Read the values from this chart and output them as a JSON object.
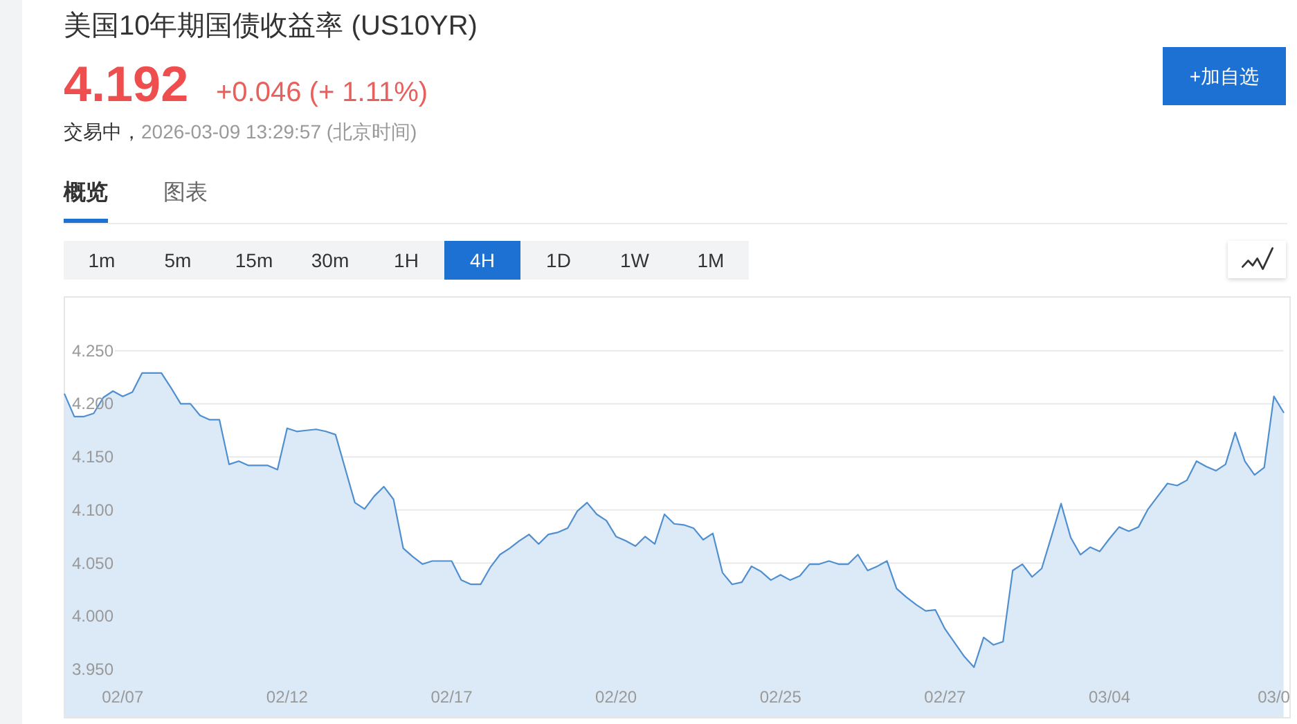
{
  "chart_data": {
    "type": "area",
    "title": "美国10年期国债收益率 (US10YR)",
    "subtitle": "4.192",
    "annotations": [
      "+0.046 (+ 1.11%)",
      "交易中，",
      "2026-03-09 13:29:57 (北京时间)",
      "+加自选",
      "概览",
      "图表",
      "1m",
      "5m",
      "15m",
      "30m",
      "1H",
      "4H",
      "1D",
      "1W",
      "1M"
    ],
    "categories": [
      null,
      null,
      null,
      null,
      null,
      null,
      "02/07",
      null,
      null,
      null,
      null,
      null,
      null,
      null,
      null,
      null,
      null,
      null,
      null,
      null,
      null,
      null,
      null,
      "02/12",
      null,
      null,
      null,
      null,
      null,
      null,
      null,
      null,
      null,
      null,
      null,
      null,
      null,
      null,
      null,
      null,
      "02/17",
      null,
      null,
      null,
      null,
      null,
      null,
      null,
      null,
      null,
      null,
      null,
      null,
      null,
      null,
      null,
      null,
      "02/20",
      null,
      null,
      null,
      null,
      null,
      null,
      null,
      null,
      null,
      null,
      null,
      null,
      null,
      null,
      null,
      null,
      "02/25",
      null,
      null,
      null,
      null,
      null,
      null,
      null,
      null,
      null,
      null,
      null,
      null,
      null,
      null,
      null,
      null,
      "02/27",
      null,
      null,
      null,
      null,
      null,
      null,
      null,
      null,
      null,
      null,
      null,
      null,
      null,
      null,
      null,
      null,
      "03/04",
      null,
      null,
      null,
      null,
      null,
      null,
      null,
      null,
      null,
      null,
      null,
      null,
      null,
      null,
      null,
      null,
      "03/0",
      null
    ],
    "series": [
      {
        "color": "#4f8fd0",
        "values": [
          4.209,
          4.188,
          4.188,
          4.191,
          4.206,
          4.212,
          4.207,
          4.211,
          4.229,
          4.229,
          4.229,
          4.215,
          4.2,
          4.2,
          4.189,
          4.185,
          4.185,
          4.143,
          4.146,
          4.142,
          4.142,
          4.142,
          4.138,
          4.177,
          4.174,
          4.175,
          4.176,
          4.174,
          4.171,
          4.139,
          4.107,
          4.101,
          4.113,
          4.122,
          4.11,
          4.064,
          4.056,
          4.049,
          4.052,
          4.052,
          4.052,
          4.034,
          4.03,
          4.03,
          4.046,
          4.058,
          4.064,
          4.071,
          4.077,
          4.068,
          4.077,
          4.079,
          4.083,
          4.099,
          4.107,
          4.096,
          4.09,
          4.075,
          4.071,
          4.066,
          4.075,
          4.068,
          4.096,
          4.087,
          4.086,
          4.083,
          4.072,
          4.078,
          4.041,
          4.03,
          4.032,
          4.047,
          4.042,
          4.034,
          4.039,
          4.034,
          4.038,
          4.049,
          4.049,
          4.052,
          4.049,
          4.049,
          4.058,
          4.043,
          4.047,
          4.052,
          4.026,
          4.018,
          4.011,
          4.005,
          4.006,
          3.988,
          3.975,
          3.962,
          3.952,
          3.98,
          3.973,
          3.976,
          4.043,
          4.049,
          4.037,
          4.045,
          4.075,
          4.106,
          4.074,
          4.058,
          4.065,
          4.061,
          4.073,
          4.084,
          4.08,
          4.084,
          4.101,
          4.113,
          4.125,
          4.123,
          4.128,
          4.146,
          4.141,
          4.137,
          4.143,
          4.173,
          4.146,
          4.133,
          4.14,
          4.207,
          4.192
        ]
      }
    ],
    "ylim": [
      3.905,
      4.3
    ],
    "yticks": [
      {
        "value": 3.95,
        "label": "3.950"
      },
      {
        "value": 4.0,
        "label": "4.000"
      },
      {
        "value": 4.05,
        "label": "4.050"
      },
      {
        "value": 4.1,
        "label": "4.100"
      },
      {
        "value": 4.15,
        "label": "4.150"
      },
      {
        "value": 4.2,
        "label": "4.200"
      },
      {
        "value": 4.25,
        "label": "4.250"
      }
    ],
    "grid": "y"
  }
}
